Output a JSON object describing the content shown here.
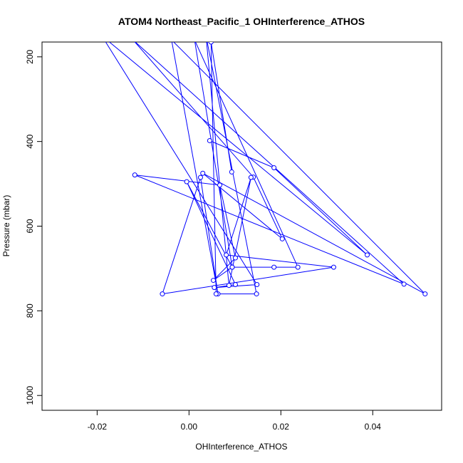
{
  "chart_data": {
    "type": "line",
    "title": "ATOM4 Northeast_Pacific_1 OHInterference_ATHOS",
    "xlabel": "OHInterference_ATHOS",
    "ylabel": "Pressure (mbar)",
    "xlim": [
      -0.032,
      0.055
    ],
    "ylim": [
      1035,
      165
    ],
    "y_reversed": true,
    "grid": false,
    "x_ticks": [
      -0.02,
      0.0,
      0.02,
      0.04
    ],
    "x_tick_labels": [
      "-0.02",
      "0.00",
      "0.02",
      "0.04"
    ],
    "y_ticks": [
      200,
      400,
      600,
      800,
      1000
    ],
    "y_tick_labels": [
      "200",
      "400",
      "600",
      "800",
      "1000"
    ],
    "series": [
      {
        "color": "#0000ff",
        "marker": "open-circle",
        "x": [
          0.0045,
          0.0185,
          0.0388,
          -0.019,
          0.0148,
          0.0055,
          0.0101,
          -0.0005,
          0.0094,
          0.0012,
          0.0237,
          0.0185,
          0.0094,
          0.0053,
          0.0101,
          0.0067,
          -0.0118,
          0.0468,
          -0.0122,
          0.014,
          0.0203,
          0.003,
          0.0514,
          -0.0038,
          0.0063,
          0.0025,
          -0.0058,
          0.0315,
          0.0081,
          0.0135,
          0.0087,
          0.0037,
          0.0147,
          0.0059,
          0.0048,
          0.0093
        ],
        "y": [
          398,
          462,
          668,
          150,
          738,
          745,
          738,
          495,
          697,
          160,
          697,
          697,
          697,
          728,
          675,
          503,
          479,
          737,
          160,
          484,
          630,
          475,
          760,
          160,
          760,
          485,
          760,
          697,
          668,
          485,
          740,
          150,
          760,
          760,
          165,
          472
        ]
      }
    ]
  }
}
